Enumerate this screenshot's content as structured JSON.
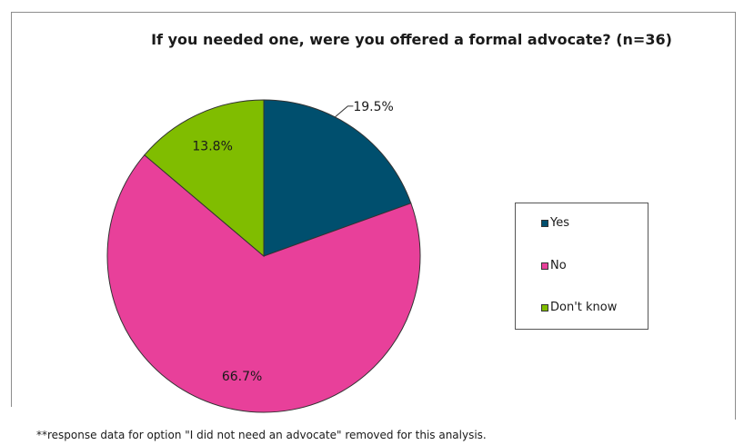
{
  "chart_data": {
    "type": "pie",
    "title": "If you needed one, were you offered a formal advocate? (n=36)",
    "slices": [
      {
        "name": "Yes",
        "value": 19.5,
        "label": "19.5%",
        "color": "#004f6e"
      },
      {
        "name": "No",
        "value": 66.7,
        "label": "66.7%",
        "color": "#e8409a"
      },
      {
        "name": "Don't know",
        "value": 13.8,
        "label": "13.8%",
        "color": "#80bd00"
      }
    ],
    "legend_position": "right"
  },
  "footnote": "**response data for option \"I did not need an advocate\" removed for this analysis."
}
